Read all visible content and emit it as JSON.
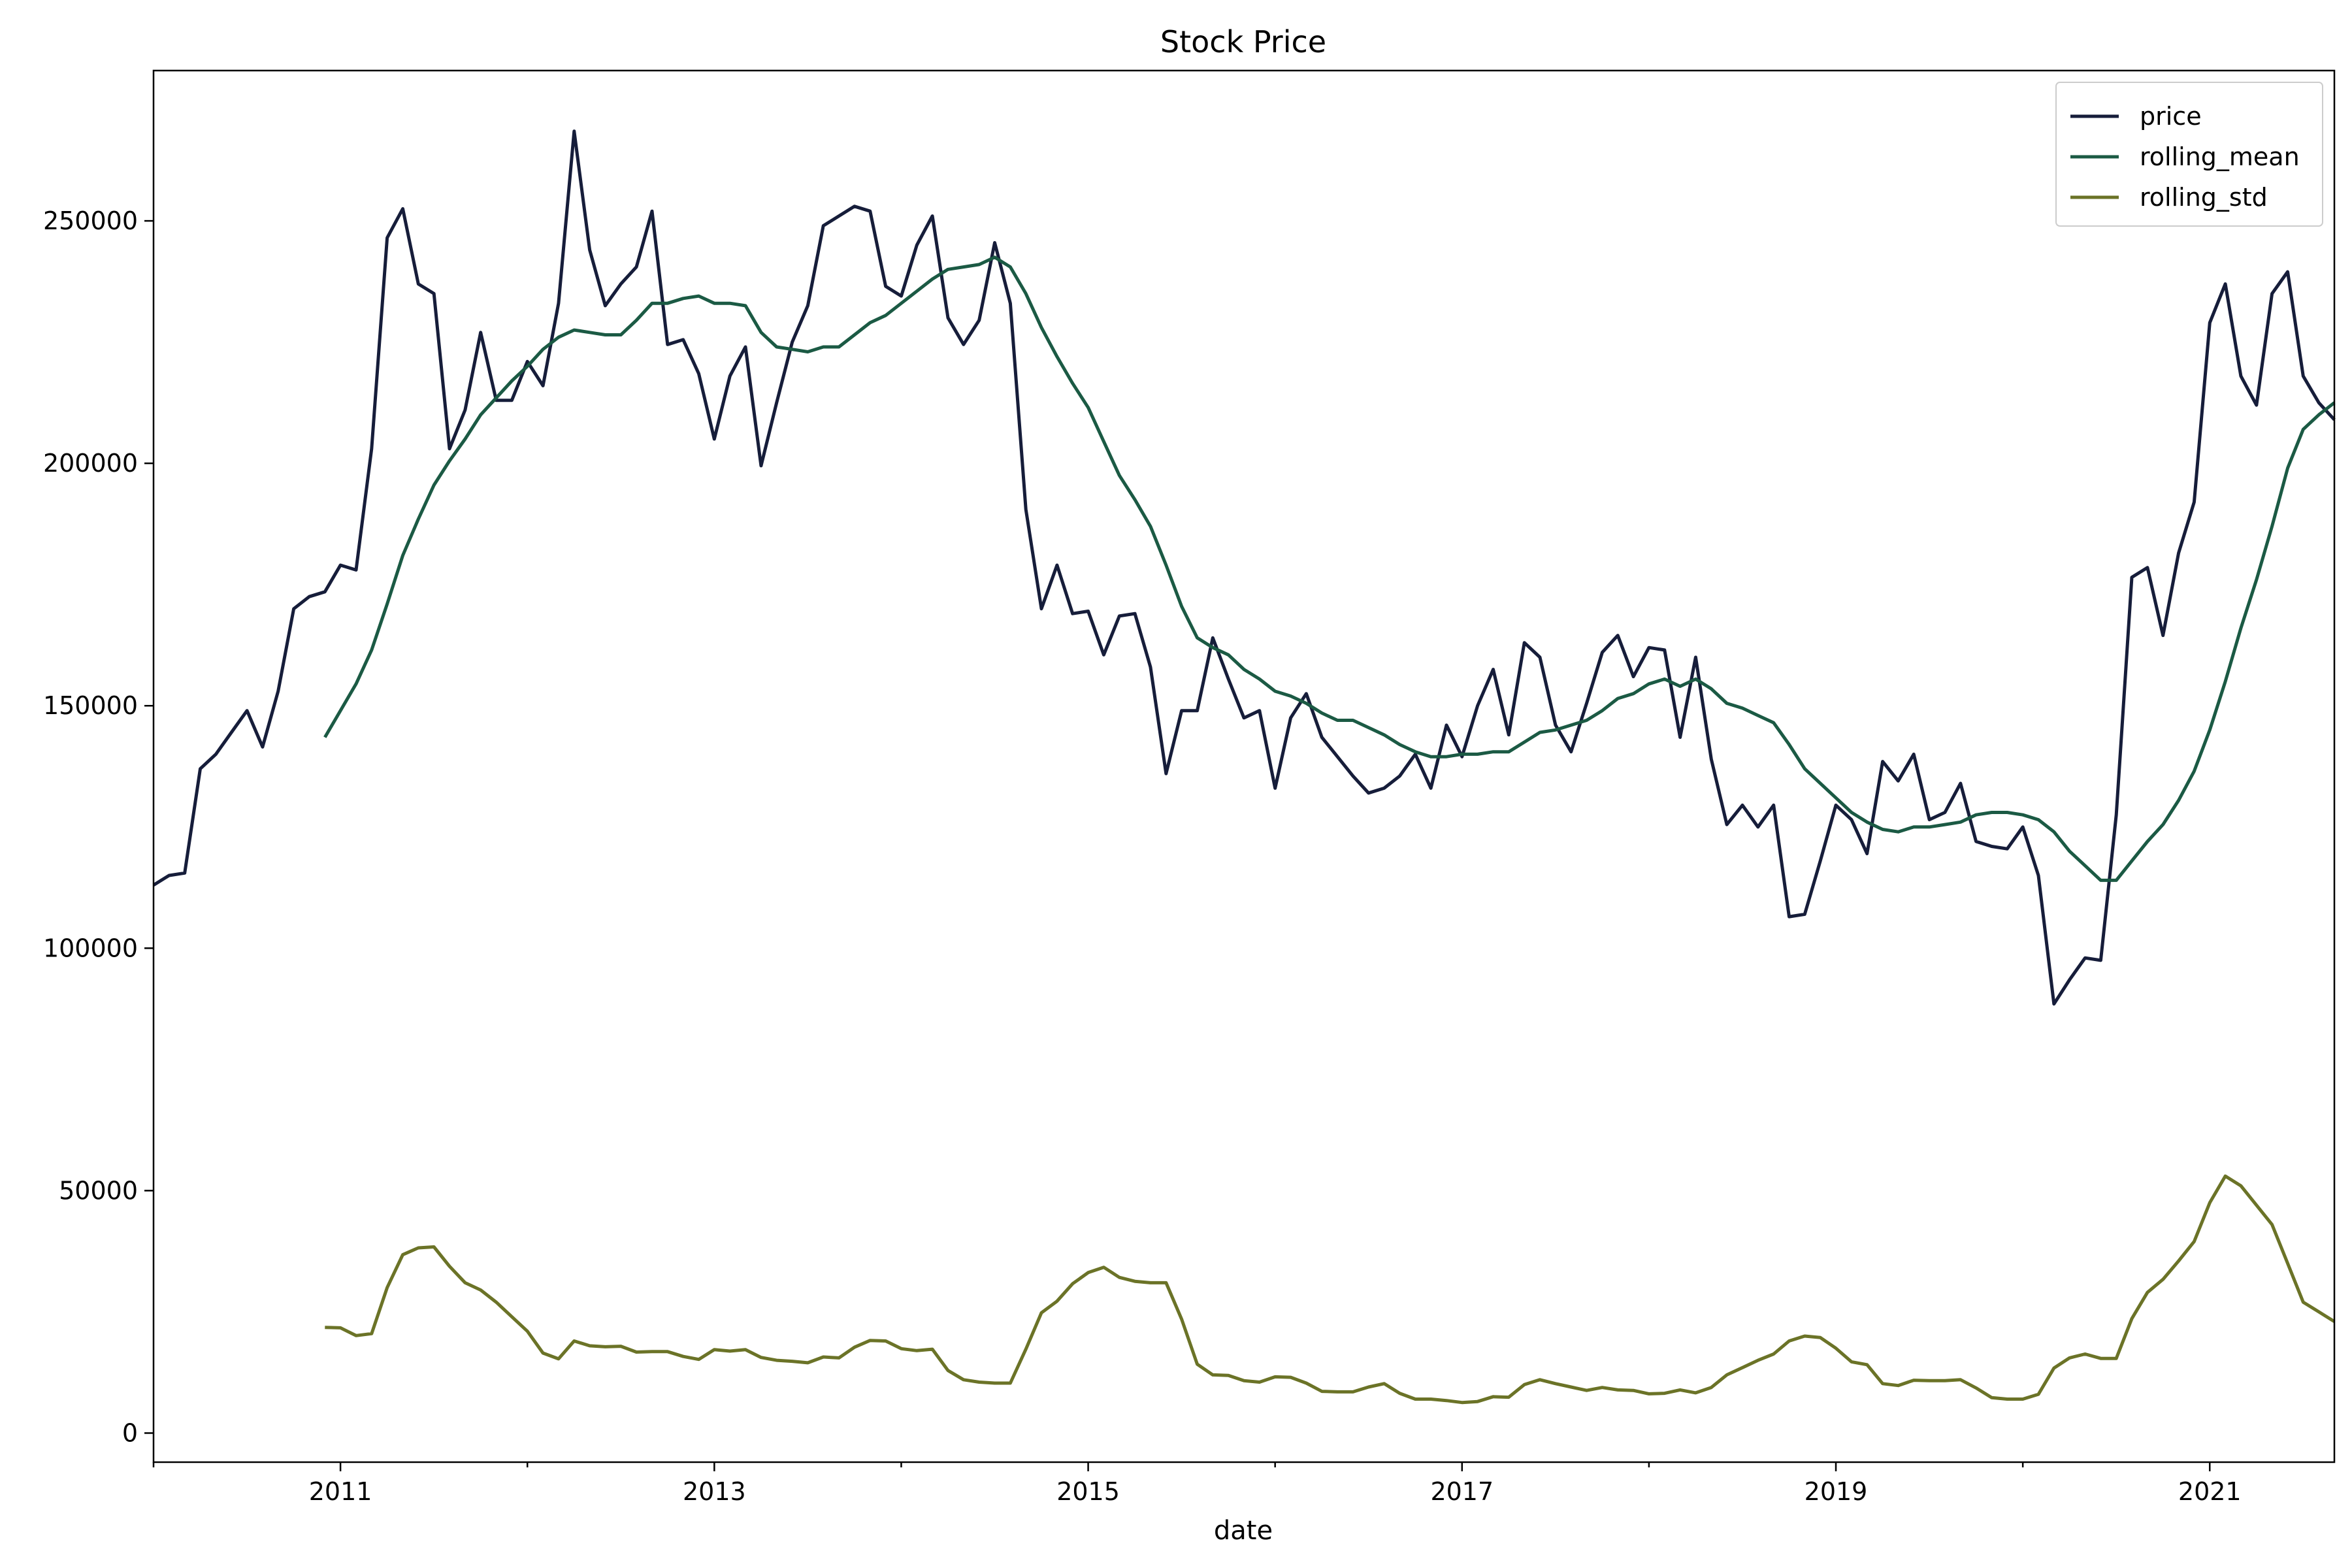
{
  "chart_data": {
    "type": "line",
    "title": "Stock Price",
    "xlabel": "date",
    "ylabel": "",
    "xlim": [
      "2010-01-01",
      "2021-09-01"
    ],
    "ylim": [
      -6000,
      281000
    ],
    "x_ticks": [
      "2011",
      "2013",
      "2015",
      "2017",
      "2019",
      "2021"
    ],
    "y_ticks": [
      0,
      50000,
      100000,
      150000,
      200000,
      250000
    ],
    "grid": false,
    "legend_position": "top-right",
    "colors": {
      "price": "#161d3a",
      "rolling_mean": "#1b5a44",
      "rolling_std": "#6b7327"
    },
    "x": [
      "2010-01",
      "2010-02",
      "2010-03",
      "2010-04",
      "2010-05",
      "2010-06",
      "2010-07",
      "2010-08",
      "2010-09",
      "2010-10",
      "2010-11",
      "2010-12",
      "2011-01",
      "2011-02",
      "2011-03",
      "2011-04",
      "2011-05",
      "2011-06",
      "2011-07",
      "2011-08",
      "2011-09",
      "2011-10",
      "2011-11",
      "2011-12",
      "2012-01",
      "2012-02",
      "2012-03",
      "2012-04",
      "2012-05",
      "2012-06",
      "2012-07",
      "2012-08",
      "2012-09",
      "2012-10",
      "2012-11",
      "2012-12",
      "2013-01",
      "2013-02",
      "2013-03",
      "2013-04",
      "2013-05",
      "2013-06",
      "2013-07",
      "2013-08",
      "2013-09",
      "2013-10",
      "2013-11",
      "2013-12",
      "2014-01",
      "2014-02",
      "2014-03",
      "2014-04",
      "2014-05",
      "2014-06",
      "2014-07",
      "2014-08",
      "2014-09",
      "2014-10",
      "2014-11",
      "2014-12",
      "2015-01",
      "2015-02",
      "2015-03",
      "2015-04",
      "2015-05",
      "2015-06",
      "2015-07",
      "2015-08",
      "2015-09",
      "2015-10",
      "2015-11",
      "2015-12",
      "2016-01",
      "2016-02",
      "2016-03",
      "2016-04",
      "2016-05",
      "2016-06",
      "2016-07",
      "2016-08",
      "2016-09",
      "2016-10",
      "2016-11",
      "2016-12",
      "2017-01",
      "2017-02",
      "2017-03",
      "2017-04",
      "2017-05",
      "2017-06",
      "2017-07",
      "2017-08",
      "2017-09",
      "2017-10",
      "2017-11",
      "2017-12",
      "2018-01",
      "2018-02",
      "2018-03",
      "2018-04",
      "2018-05",
      "2018-06",
      "2018-07",
      "2018-08",
      "2018-09",
      "2018-10",
      "2018-11",
      "2018-12",
      "2019-01",
      "2019-02",
      "2019-03",
      "2019-04",
      "2019-05",
      "2019-06",
      "2019-07",
      "2019-08",
      "2019-09",
      "2019-10",
      "2019-11",
      "2019-12",
      "2020-01",
      "2020-02",
      "2020-03",
      "2020-04",
      "2020-05",
      "2020-06",
      "2020-07",
      "2020-08",
      "2020-09",
      "2020-10",
      "2020-11",
      "2020-12",
      "2021-01",
      "2021-02",
      "2021-03",
      "2021-04",
      "2021-05",
      "2021-06",
      "2021-07",
      "2021-08",
      "2021-09"
    ],
    "series": [
      {
        "name": "price",
        "values": [
          113000,
          115000,
          115500,
          137000,
          140000,
          144500,
          149000,
          141500,
          153000,
          170000,
          172500,
          173500,
          179000,
          178000,
          203000,
          246500,
          252500,
          237000,
          235000,
          203000,
          211000,
          227000,
          213000,
          213000,
          221000,
          216000,
          233000,
          268500,
          244000,
          232500,
          237000,
          240500,
          252000,
          224500,
          225500,
          218500,
          205000,
          218000,
          224000,
          199500,
          212500,
          225000,
          232500,
          249000,
          251000,
          253000,
          252000,
          236500,
          234500,
          245000,
          251000,
          230000,
          224500,
          229500,
          245500,
          233000,
          190500,
          170000,
          179000,
          169000,
          169500,
          160500,
          168500,
          169000,
          158000,
          136000,
          149000,
          149000,
          164000,
          155500,
          147500,
          149000,
          133000,
          147500,
          152500,
          143500,
          139500,
          135500,
          132000,
          133000,
          135500,
          140000,
          133000,
          146000,
          139500,
          150000,
          157500,
          144000,
          163000,
          160000,
          146000,
          140500,
          150500,
          161000,
          164500,
          156000,
          162000,
          161500,
          143500,
          160000,
          139000,
          125500,
          129500,
          125000,
          129500,
          106500,
          107000,
          118000,
          129500,
          126500,
          119500,
          138500,
          134500,
          140000,
          126500,
          128000,
          134000,
          122000,
          121000,
          120500,
          125000,
          115000,
          88500,
          93500,
          98000,
          97500,
          127500,
          176500,
          178500,
          164500,
          181500,
          192000,
          229000,
          237000,
          218000,
          212000,
          235000,
          239500,
          218000,
          212500,
          209000
        ]
      },
      {
        "name": "rolling_mean",
        "values": [
          null,
          null,
          null,
          null,
          null,
          null,
          null,
          null,
          null,
          null,
          null,
          143500,
          149000,
          154500,
          161500,
          171000,
          181000,
          188500,
          195500,
          200500,
          205000,
          210000,
          213500,
          217000,
          220000,
          223500,
          226000,
          227500,
          227000,
          226500,
          226500,
          229500,
          233000,
          233000,
          234000,
          234500,
          233000,
          233000,
          232500,
          227000,
          224000,
          223500,
          223000,
          224000,
          224000,
          226500,
          229000,
          230500,
          233000,
          235500,
          238000,
          240000,
          240500,
          241000,
          242500,
          240500,
          235000,
          228000,
          222000,
          216500,
          211500,
          204500,
          197500,
          192500,
          187000,
          179000,
          170500,
          164000,
          162000,
          160500,
          157500,
          155500,
          153000,
          152000,
          150500,
          148500,
          147000,
          147000,
          145500,
          144000,
          142000,
          140500,
          139500,
          139500,
          140000,
          140000,
          140500,
          140500,
          142500,
          144500,
          145000,
          146000,
          147000,
          149000,
          151500,
          152500,
          154500,
          155500,
          154000,
          155500,
          153500,
          150500,
          149500,
          148000,
          146500,
          142000,
          137000,
          134000,
          131000,
          128000,
          126000,
          124500,
          124000,
          125000,
          125000,
          125500,
          126000,
          127500,
          128000,
          128000,
          127500,
          126500,
          124000,
          120000,
          117000,
          114000,
          114000,
          118000,
          122000,
          125500,
          130500,
          136500,
          145000,
          155000,
          166000,
          176000,
          187000,
          199000,
          207000,
          210000,
          212500
        ]
      },
      {
        "name": "rolling_std",
        "values": [
          null,
          null,
          null,
          null,
          null,
          null,
          null,
          null,
          null,
          null,
          null,
          21800,
          21700,
          20100,
          20500,
          30000,
          36800,
          38200,
          38400,
          34400,
          31000,
          29500,
          27000,
          24000,
          21000,
          16500,
          15300,
          19000,
          18000,
          17800,
          17900,
          16700,
          16800,
          16800,
          15800,
          15200,
          17200,
          16900,
          17200,
          15600,
          15000,
          14800,
          14500,
          15700,
          15500,
          17700,
          19100,
          19000,
          17400,
          17000,
          17300,
          12900,
          11000,
          10500,
          10300,
          10300,
          17300,
          24800,
          27200,
          30800,
          33100,
          34200,
          32100,
          31300,
          31000,
          31000,
          23500,
          14200,
          12000,
          11900,
          10800,
          10500,
          11600,
          11500,
          10300,
          8600,
          8500,
          8500,
          9500,
          10200,
          8200,
          7000,
          7000,
          6700,
          6300,
          6500,
          7500,
          7400,
          10000,
          11000,
          10200,
          9500,
          8800,
          9400,
          8900,
          8800,
          8100,
          8200,
          8900,
          8300,
          9400,
          12000,
          13500,
          15000,
          16300,
          19000,
          20000,
          19700,
          17500,
          14700,
          14100,
          10200,
          9800,
          10900,
          10800,
          10800,
          11000,
          9300,
          7300,
          7000,
          7000,
          8000,
          13400,
          15500,
          16300,
          15400,
          15400,
          23600,
          29000,
          31700,
          35500,
          39500,
          47500,
          53000,
          51000,
          47000,
          43000,
          35000,
          27000,
          25000,
          23000
        ]
      }
    ]
  }
}
